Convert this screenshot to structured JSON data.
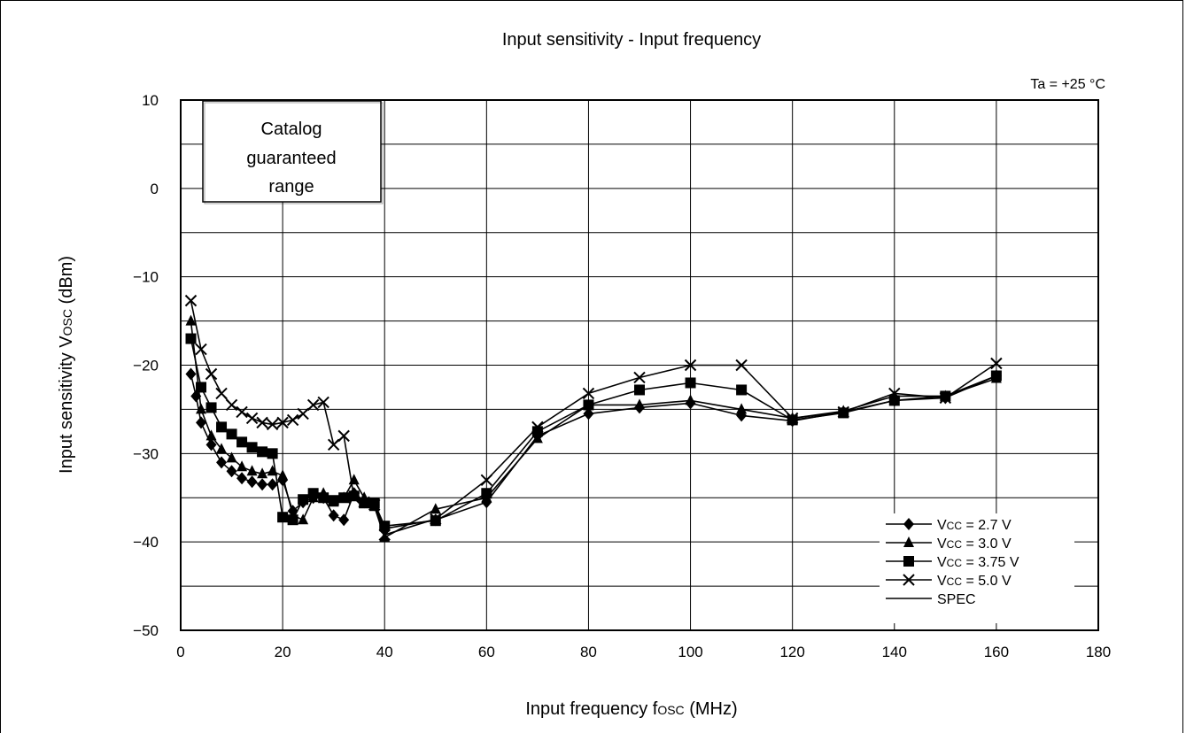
{
  "chart_data": {
    "type": "line",
    "title": "Input sensitivity - Input frequency",
    "condition": "Ta = +25 °C",
    "xlabel": {
      "main": "Input frequency f",
      "sub": "OSC",
      "unit": " (MHz)"
    },
    "ylabel": {
      "main": "Input sensitivity V",
      "sub": "OSC",
      "unit": " (dBm)"
    },
    "xlim": [
      0,
      180
    ],
    "ylim": [
      -50,
      10
    ],
    "xticks": [
      0,
      20,
      40,
      60,
      80,
      100,
      120,
      140,
      160,
      180
    ],
    "xtick_labels": [
      "0",
      "20",
      "40",
      "60",
      "80",
      "100",
      "120",
      "140",
      "160",
      "180"
    ],
    "yticks": [
      -50,
      -40,
      -30,
      -20,
      -10,
      0,
      10
    ],
    "ytick_labels": [
      "−50",
      "−40",
      "−30",
      "−20",
      "−10",
      "0",
      "10"
    ],
    "grid": true,
    "annotation": [
      "Catalog",
      "guaranteed",
      "range"
    ],
    "legend_position": "bottom-right",
    "series": [
      {
        "name_main": "V",
        "name_sub": "CC",
        "name_rest": " = 2.7 V",
        "marker": "diamond",
        "x": [
          2,
          3,
          4,
          6,
          8,
          10,
          12,
          14,
          16,
          18,
          20,
          22,
          24,
          26,
          28,
          30,
          32,
          34,
          36,
          38,
          40,
          50,
          60,
          70,
          80,
          90,
          100,
          110,
          120,
          130,
          140,
          150,
          160
        ],
        "y": [
          -21,
          -23.5,
          -26.5,
          -29,
          -31,
          -32,
          -32.8,
          -33.2,
          -33.5,
          -33.5,
          -33,
          -36.5,
          -35.5,
          -35,
          -35,
          -37,
          -37.5,
          -34.5,
          -35.5,
          -35.8,
          -38.5,
          -37.5,
          -35.5,
          -28,
          -25.5,
          -24.8,
          -24.3,
          -25.7,
          -26.3,
          -25.3,
          -24,
          -23.7,
          -21.2
        ]
      },
      {
        "name_main": "V",
        "name_sub": "CC",
        "name_rest": " = 3.0 V",
        "marker": "triangle",
        "x": [
          2,
          4,
          6,
          8,
          10,
          12,
          14,
          16,
          18,
          20,
          22,
          24,
          26,
          28,
          30,
          32,
          34,
          36,
          38,
          40,
          50,
          60,
          70,
          80,
          90,
          100,
          110,
          120,
          130,
          140,
          150,
          160
        ],
        "y": [
          -15,
          -25,
          -28,
          -29.5,
          -30.5,
          -31.5,
          -32,
          -32.3,
          -32,
          -32.5,
          -37,
          -37.5,
          -35,
          -34.5,
          -35.5,
          -35,
          -33,
          -35,
          -36,
          -39.5,
          -36.3,
          -35,
          -28.3,
          -24.5,
          -24.5,
          -24,
          -25,
          -26,
          -25.2,
          -23.5,
          -23.5,
          -21.5
        ]
      },
      {
        "name_main": "V",
        "name_sub": "CC",
        "name_rest": " = 3.75 V",
        "marker": "square",
        "x": [
          2,
          4,
          6,
          8,
          10,
          12,
          14,
          16,
          18,
          20,
          22,
          24,
          26,
          28,
          30,
          32,
          34,
          36,
          38,
          40,
          50,
          60,
          70,
          80,
          90,
          100,
          110,
          120,
          130,
          140,
          150,
          160
        ],
        "y": [
          -17,
          -22.5,
          -24.8,
          -27,
          -27.8,
          -28.7,
          -29.3,
          -29.8,
          -30,
          -37.2,
          -37.5,
          -35.2,
          -34.5,
          -35,
          -35.3,
          -35,
          -34.8,
          -35.6,
          -35.6,
          -38.2,
          -37.6,
          -34.5,
          -27.5,
          -24.5,
          -22.8,
          -22,
          -22.8,
          -26.2,
          -25.4,
          -24,
          -23.5,
          -21.2
        ]
      },
      {
        "name_main": "V",
        "name_sub": "CC",
        "name_rest": " = 5.0 V",
        "marker": "x",
        "x": [
          2,
          4,
          6,
          8,
          10,
          12,
          14,
          16,
          18,
          20,
          22,
          24,
          26,
          28,
          30,
          32,
          34,
          36,
          38,
          40,
          50,
          60,
          70,
          80,
          90,
          100,
          110,
          120,
          130,
          140,
          150,
          160
        ],
        "y": [
          -12.7,
          -18.2,
          -21,
          -23.2,
          -24.5,
          -25.3,
          -26,
          -26.5,
          -26.7,
          -26.5,
          -26.2,
          -25.5,
          -24.5,
          -24.2,
          -29,
          -28,
          -35,
          -35.5,
          -35.8,
          -39.2,
          -37.4,
          -33,
          -27,
          -23.2,
          -21.4,
          -20,
          -20,
          -26,
          -25.3,
          -23.2,
          -23.7,
          -19.8
        ]
      },
      {
        "name_main": "",
        "name_sub": "",
        "name_rest": "SPEC",
        "marker": "none",
        "x": [],
        "y": []
      }
    ]
  }
}
